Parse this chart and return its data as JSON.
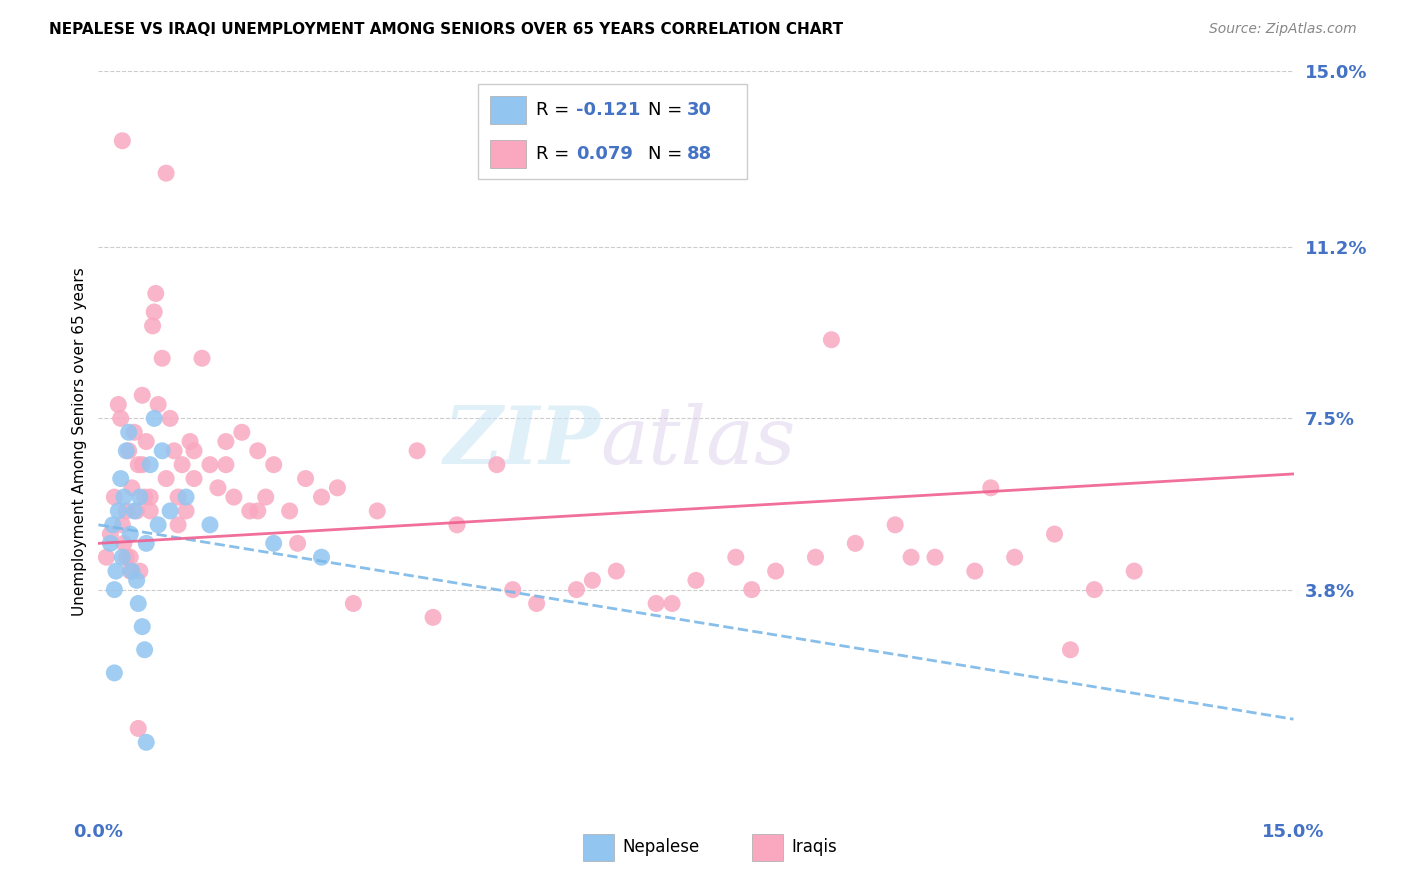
{
  "title": "NEPALESE VS IRAQI UNEMPLOYMENT AMONG SENIORS OVER 65 YEARS CORRELATION CHART",
  "source": "Source: ZipAtlas.com",
  "ylabel_label": "Unemployment Among Seniors over 65 years",
  "xmin": 0.0,
  "xmax": 15.0,
  "ymin": -1.0,
  "ymax": 15.0,
  "ylabel_right_ticks": [
    15.0,
    11.2,
    7.5,
    3.8
  ],
  "nepalese_color": "#92C5F0",
  "iraqis_color": "#F9A8C0",
  "trend_nepalese_color": "#7ab8e8",
  "trend_iraqis_color": "#F06090",
  "axis_color": "#4472C4",
  "grid_color": "#cccccc",
  "background_color": "#FFFFFF",
  "nep_trend_slope": -0.28,
  "nep_trend_intercept": 5.2,
  "irq_trend_slope": 0.1,
  "irq_trend_intercept": 4.8,
  "nepalese_x": [
    0.15,
    0.18,
    0.2,
    0.22,
    0.25,
    0.28,
    0.3,
    0.32,
    0.35,
    0.38,
    0.4,
    0.42,
    0.45,
    0.48,
    0.5,
    0.52,
    0.55,
    0.58,
    0.6,
    0.65,
    0.7,
    0.75,
    0.8,
    0.9,
    1.1,
    1.4,
    2.2,
    2.8,
    0.2,
    0.6
  ],
  "nepalese_y": [
    4.8,
    5.2,
    3.8,
    4.2,
    5.5,
    6.2,
    4.5,
    5.8,
    6.8,
    7.2,
    5.0,
    4.2,
    5.5,
    4.0,
    3.5,
    5.8,
    3.0,
    2.5,
    4.8,
    6.5,
    7.5,
    5.2,
    6.8,
    5.5,
    5.8,
    5.2,
    4.8,
    4.5,
    2.0,
    0.5
  ],
  "iraqis_x": [
    0.1,
    0.15,
    0.2,
    0.25,
    0.28,
    0.3,
    0.32,
    0.35,
    0.38,
    0.4,
    0.42,
    0.45,
    0.48,
    0.5,
    0.52,
    0.55,
    0.58,
    0.6,
    0.65,
    0.68,
    0.7,
    0.75,
    0.8,
    0.85,
    0.9,
    0.95,
    1.0,
    1.05,
    1.1,
    1.15,
    1.2,
    1.3,
    1.4,
    1.5,
    1.6,
    1.7,
    1.8,
    1.9,
    2.0,
    2.1,
    2.2,
    2.4,
    2.6,
    2.8,
    3.0,
    3.5,
    4.0,
    4.5,
    5.0,
    5.5,
    6.0,
    6.5,
    7.0,
    7.5,
    8.0,
    8.5,
    9.0,
    9.5,
    10.0,
    10.5,
    11.0,
    11.5,
    12.0,
    12.5,
    13.0,
    0.35,
    0.4,
    0.55,
    0.65,
    0.72,
    0.85,
    1.0,
    1.2,
    1.6,
    2.0,
    2.5,
    3.2,
    4.2,
    5.2,
    6.2,
    7.2,
    8.2,
    9.2,
    10.2,
    11.2,
    12.2,
    0.3,
    0.5
  ],
  "iraqis_y": [
    4.5,
    5.0,
    5.8,
    7.8,
    7.5,
    5.2,
    4.8,
    5.5,
    6.8,
    4.5,
    6.0,
    7.2,
    5.5,
    6.5,
    4.2,
    8.0,
    5.8,
    7.0,
    5.5,
    9.5,
    9.8,
    7.8,
    8.8,
    6.2,
    7.5,
    6.8,
    5.8,
    6.5,
    5.5,
    7.0,
    6.2,
    8.8,
    6.5,
    6.0,
    7.0,
    5.8,
    7.2,
    5.5,
    6.8,
    5.8,
    6.5,
    5.5,
    6.2,
    5.8,
    6.0,
    5.5,
    6.8,
    5.2,
    6.5,
    3.5,
    3.8,
    4.2,
    3.5,
    4.0,
    4.5,
    4.2,
    4.5,
    4.8,
    5.2,
    4.5,
    4.2,
    4.5,
    5.0,
    3.8,
    4.2,
    4.5,
    4.2,
    6.5,
    5.8,
    10.2,
    12.8,
    5.2,
    6.8,
    6.5,
    5.5,
    4.8,
    3.5,
    3.2,
    3.8,
    4.0,
    3.5,
    3.8,
    9.2,
    4.5,
    6.0,
    2.5,
    13.5,
    0.8
  ]
}
